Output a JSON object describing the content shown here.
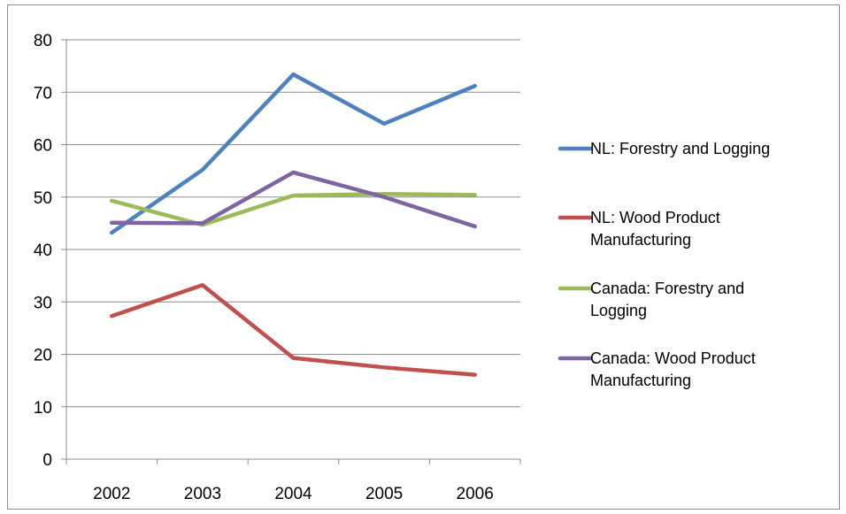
{
  "chart_data": {
    "type": "line",
    "categories": [
      "2002",
      "2003",
      "2004",
      "2005",
      "2006"
    ],
    "ylim": [
      0,
      80
    ],
    "yticks": [
      0,
      10,
      20,
      30,
      40,
      50,
      60,
      70,
      80
    ],
    "grid": true,
    "legend_position": "right",
    "series": [
      {
        "name": "NL: Forestry and Logging",
        "legend_lines": [
          "NL: Forestry and Logging"
        ],
        "color": "#4f81bd",
        "values": [
          43.2,
          55.2,
          73.4,
          64.0,
          71.2
        ]
      },
      {
        "name": "NL: Wood Product Manufacturing",
        "legend_lines": [
          "NL: Wood Product",
          "Manufacturing"
        ],
        "color": "#c0504d",
        "values": [
          27.3,
          33.2,
          19.3,
          17.5,
          16.1
        ]
      },
      {
        "name": "Canada: Forestry and Logging",
        "legend_lines": [
          "Canada: Forestry and",
          "Logging"
        ],
        "color": "#9bbb59",
        "values": [
          49.3,
          44.7,
          50.3,
          50.6,
          50.4
        ]
      },
      {
        "name": "Canada: Wood Product Manufacturing",
        "legend_lines": [
          "Canada: Wood Product",
          "Manufacturing"
        ],
        "color": "#8064a2",
        "values": [
          45.1,
          45.0,
          54.7,
          50.0,
          44.4
        ]
      }
    ]
  }
}
